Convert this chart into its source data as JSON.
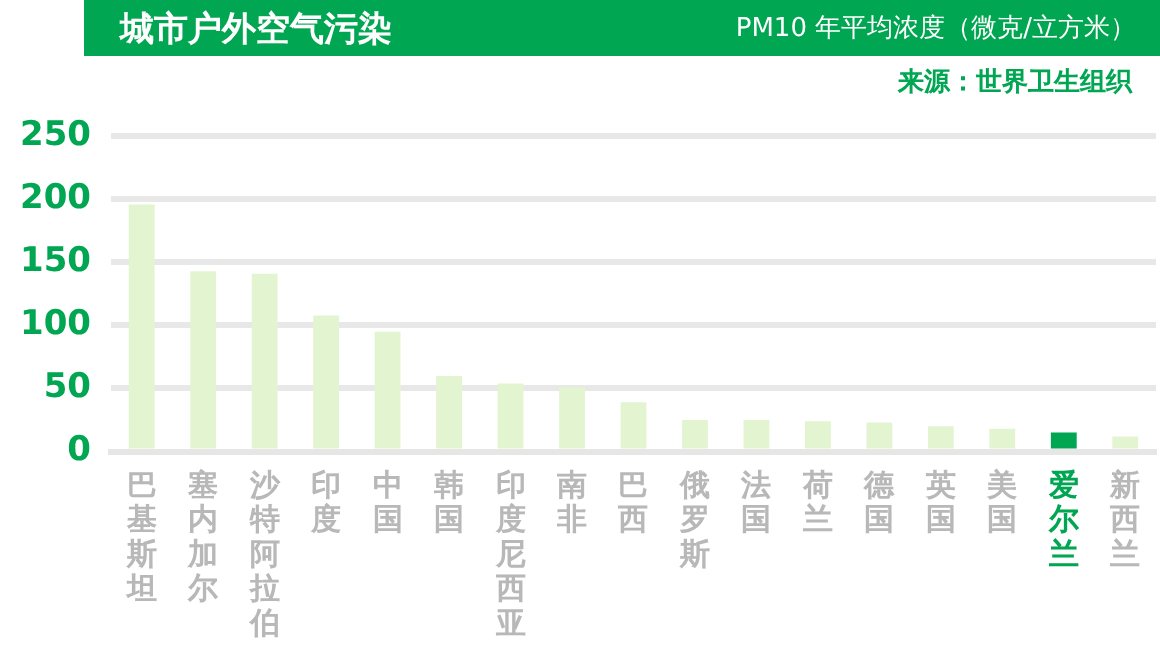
{
  "chart_data": {
    "type": "bar",
    "title": "城市户外空气污染",
    "subtitle": "PM10 年平均浓度（微克/立方米）",
    "annotations": [
      "来源：世界卫生组织"
    ],
    "categories": [
      "巴基斯坦",
      "塞内加尔",
      "沙特阿拉伯",
      "印度",
      "中国",
      "韩国",
      "印度尼西亚",
      "南非",
      "巴西",
      "俄罗斯",
      "法国",
      "荷兰",
      "德国",
      "英国",
      "美国",
      "爱尔兰",
      "新西兰"
    ],
    "values": [
      196,
      143,
      141,
      108,
      95,
      60,
      54,
      51,
      39,
      25,
      25,
      24,
      23,
      20,
      18,
      15,
      12
    ],
    "colors": [
      "#e2f5d0",
      "#e2f5d0",
      "#e2f5d0",
      "#e2f5d0",
      "#e2f5d0",
      "#e2f5d0",
      "#e2f5d0",
      "#e2f5d0",
      "#e2f5d0",
      "#e2f5d0",
      "#e2f5d0",
      "#e2f5d0",
      "#e2f5d0",
      "#e2f5d0",
      "#e2f5d0",
      "#00a651",
      "#e2f5d0"
    ],
    "ylim": [
      0,
      250
    ],
    "yticks": [
      0,
      50,
      100,
      150,
      200,
      250
    ],
    "grid": "y",
    "legend": false
  }
}
